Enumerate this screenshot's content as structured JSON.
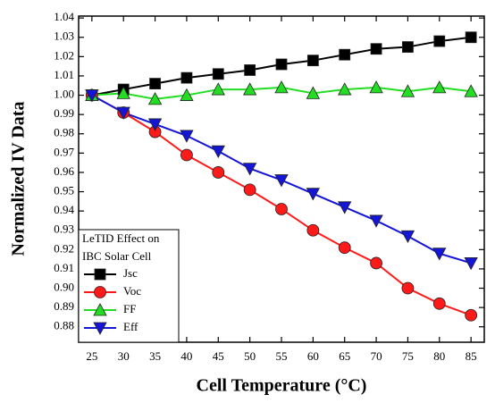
{
  "chart_data": {
    "type": "line",
    "xlabel": "Cell Temperature (°C)",
    "ylabel": "Normalized IV Data",
    "legend_title": [
      "LeTID Effect on",
      "IBC Solar Cell"
    ],
    "legend_position": "lower left",
    "x": [
      25,
      30,
      35,
      40,
      45,
      50,
      55,
      60,
      65,
      70,
      75,
      80,
      85
    ],
    "xlim": [
      22.9,
      87.1
    ],
    "xticks": [
      25,
      30,
      35,
      40,
      45,
      50,
      55,
      60,
      65,
      70,
      75,
      80,
      85
    ],
    "ylim": [
      0.872,
      1.041
    ],
    "yticks": [
      0.88,
      0.89,
      {
        "value": 0.9,
        "label": "0.90"
      },
      0.91,
      0.92,
      0.93,
      0.94,
      0.95,
      0.96,
      0.97,
      0.98,
      0.99,
      {
        "value": 1,
        "label": "1.00"
      },
      1.01,
      1.02,
      1.03,
      1.04
    ],
    "series": [
      {
        "name": "Jsc",
        "color": "#000000",
        "marker": "square",
        "values": [
          1.0,
          1.003,
          1.006,
          1.009,
          1.011,
          1.013,
          1.016,
          1.018,
          1.021,
          1.024,
          1.025,
          1.028,
          1.03
        ]
      },
      {
        "name": "Voc",
        "color": "#ff1a1a",
        "marker": "circle",
        "values": [
          1.0,
          0.991,
          0.981,
          0.969,
          0.96,
          0.951,
          0.941,
          0.93,
          0.921,
          0.913,
          0.9,
          0.892,
          0.886
        ]
      },
      {
        "name": "FF",
        "color": "#22dd22",
        "marker": "triangle-up",
        "values": [
          1.0,
          1.001,
          0.998,
          1.0,
          1.003,
          1.003,
          1.004,
          1.001,
          1.003,
          1.004,
          1.002,
          1.004,
          1.002
        ]
      },
      {
        "name": "Eff",
        "color": "#1515d5",
        "marker": "triangle-down",
        "values": [
          1.0,
          0.991,
          0.985,
          0.979,
          0.971,
          0.962,
          0.956,
          0.949,
          0.942,
          0.935,
          0.927,
          0.918,
          0.913
        ]
      }
    ]
  }
}
